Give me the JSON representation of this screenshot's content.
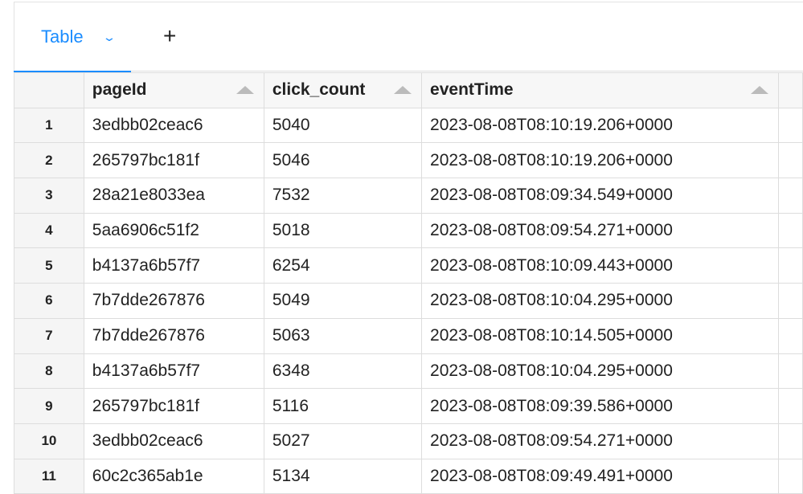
{
  "tabs": [
    {
      "label": "Table",
      "active": true
    }
  ],
  "accent": "#1a8cff",
  "table": {
    "columns": [
      "pageId",
      "click_count",
      "eventTime"
    ],
    "rows": [
      {
        "index": "1",
        "pageId": "3edbb02ceac6",
        "click_count": "5040",
        "eventTime": "2023-08-08T08:10:19.206+0000"
      },
      {
        "index": "2",
        "pageId": "265797bc181f",
        "click_count": "5046",
        "eventTime": "2023-08-08T08:10:19.206+0000"
      },
      {
        "index": "3",
        "pageId": "28a21e8033ea",
        "click_count": "7532",
        "eventTime": "2023-08-08T08:09:34.549+0000"
      },
      {
        "index": "4",
        "pageId": "5aa6906c51f2",
        "click_count": "5018",
        "eventTime": "2023-08-08T08:09:54.271+0000"
      },
      {
        "index": "5",
        "pageId": "b4137a6b57f7",
        "click_count": "6254",
        "eventTime": "2023-08-08T08:10:09.443+0000"
      },
      {
        "index": "6",
        "pageId": "7b7dde267876",
        "click_count": "5049",
        "eventTime": "2023-08-08T08:10:04.295+0000"
      },
      {
        "index": "7",
        "pageId": "7b7dde267876",
        "click_count": "5063",
        "eventTime": "2023-08-08T08:10:14.505+0000"
      },
      {
        "index": "8",
        "pageId": "b4137a6b57f7",
        "click_count": "6348",
        "eventTime": "2023-08-08T08:10:04.295+0000"
      },
      {
        "index": "9",
        "pageId": "265797bc181f",
        "click_count": "5116",
        "eventTime": "2023-08-08T08:09:39.586+0000"
      },
      {
        "index": "10",
        "pageId": "3edbb02ceac6",
        "click_count": "5027",
        "eventTime": "2023-08-08T08:09:54.271+0000"
      },
      {
        "index": "11",
        "pageId": "60c2c365ab1e",
        "click_count": "5134",
        "eventTime": "2023-08-08T08:09:49.491+0000"
      }
    ]
  }
}
